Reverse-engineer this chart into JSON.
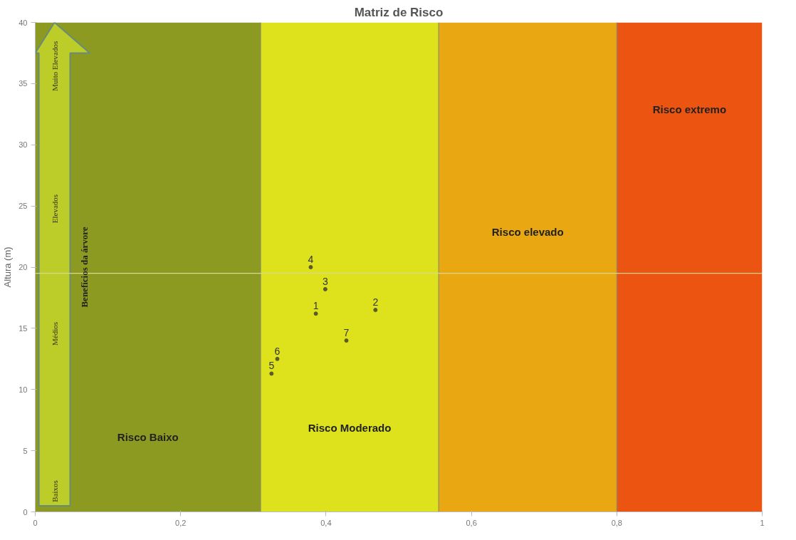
{
  "chart_data": {
    "type": "scatter",
    "title": "Matriz de Risco",
    "ylabel": "Altura (m)",
    "x": [
      0.386,
      0.468,
      0.399,
      0.379,
      0.325,
      0.333,
      0.428
    ],
    "series": [
      {
        "color": "#5a5a2a",
        "values": [
          16.2,
          16.5,
          18.2,
          20.0,
          11.3,
          12.5,
          14.0
        ]
      }
    ],
    "marker": "circle",
    "xlim": [
      0,
      1
    ],
    "ylim": [
      0,
      40
    ],
    "xticks": [
      0,
      {
        "value": 0.2,
        "label": "0,2"
      },
      {
        "value": 0.4,
        "label": "0,4"
      },
      {
        "value": 0.6,
        "label": "0,6"
      },
      {
        "value": 0.8,
        "label": "0,8"
      },
      1
    ],
    "yticks": [
      0,
      5,
      10,
      15,
      20,
      25,
      30,
      35,
      40
    ],
    "bands": [
      {
        "axis": "x",
        "from": 0,
        "to": 0.31,
        "label": "Risco Baixo",
        "color": "#8c9a22"
      },
      {
        "axis": "x",
        "from": 0.31,
        "to": 0.555,
        "label": "Risco Moderado",
        "color": "#dde21c"
      },
      {
        "axis": "x",
        "from": 0.555,
        "to": 0.8,
        "label": "Risco elevado",
        "color": "#e9a812"
      },
      {
        "axis": "x",
        "from": 0.8,
        "to": 1,
        "label": "Risco extremo",
        "color": "#ec5412"
      }
    ],
    "ref_lines": [
      {
        "axis": "x",
        "value": 0.31,
        "color": "#8a8a6a"
      },
      {
        "axis": "x",
        "value": 0.555,
        "color": "#8a8a6a"
      },
      {
        "axis": "x",
        "value": 0.8,
        "color": "#8a8a6a"
      },
      {
        "axis": "y",
        "value": 19.5,
        "color": "#d8d890"
      }
    ],
    "annotations": [
      "Benefícios da árvore",
      "Baixos",
      "Médios",
      "Elevados",
      "Muito Elevados",
      {
        "text": "1",
        "x": 0.386,
        "y": 16.2
      },
      {
        "text": "2",
        "x": 0.468,
        "y": 16.5
      },
      {
        "text": "3",
        "x": 0.399,
        "y": 18.2
      },
      {
        "text": "4",
        "x": 0.379,
        "y": 20.0
      },
      {
        "text": "5",
        "x": 0.325,
        "y": 11.3
      },
      {
        "text": "6",
        "x": 0.333,
        "y": 12.5
      },
      {
        "text": "7",
        "x": 0.428,
        "y": 14.0
      }
    ]
  }
}
